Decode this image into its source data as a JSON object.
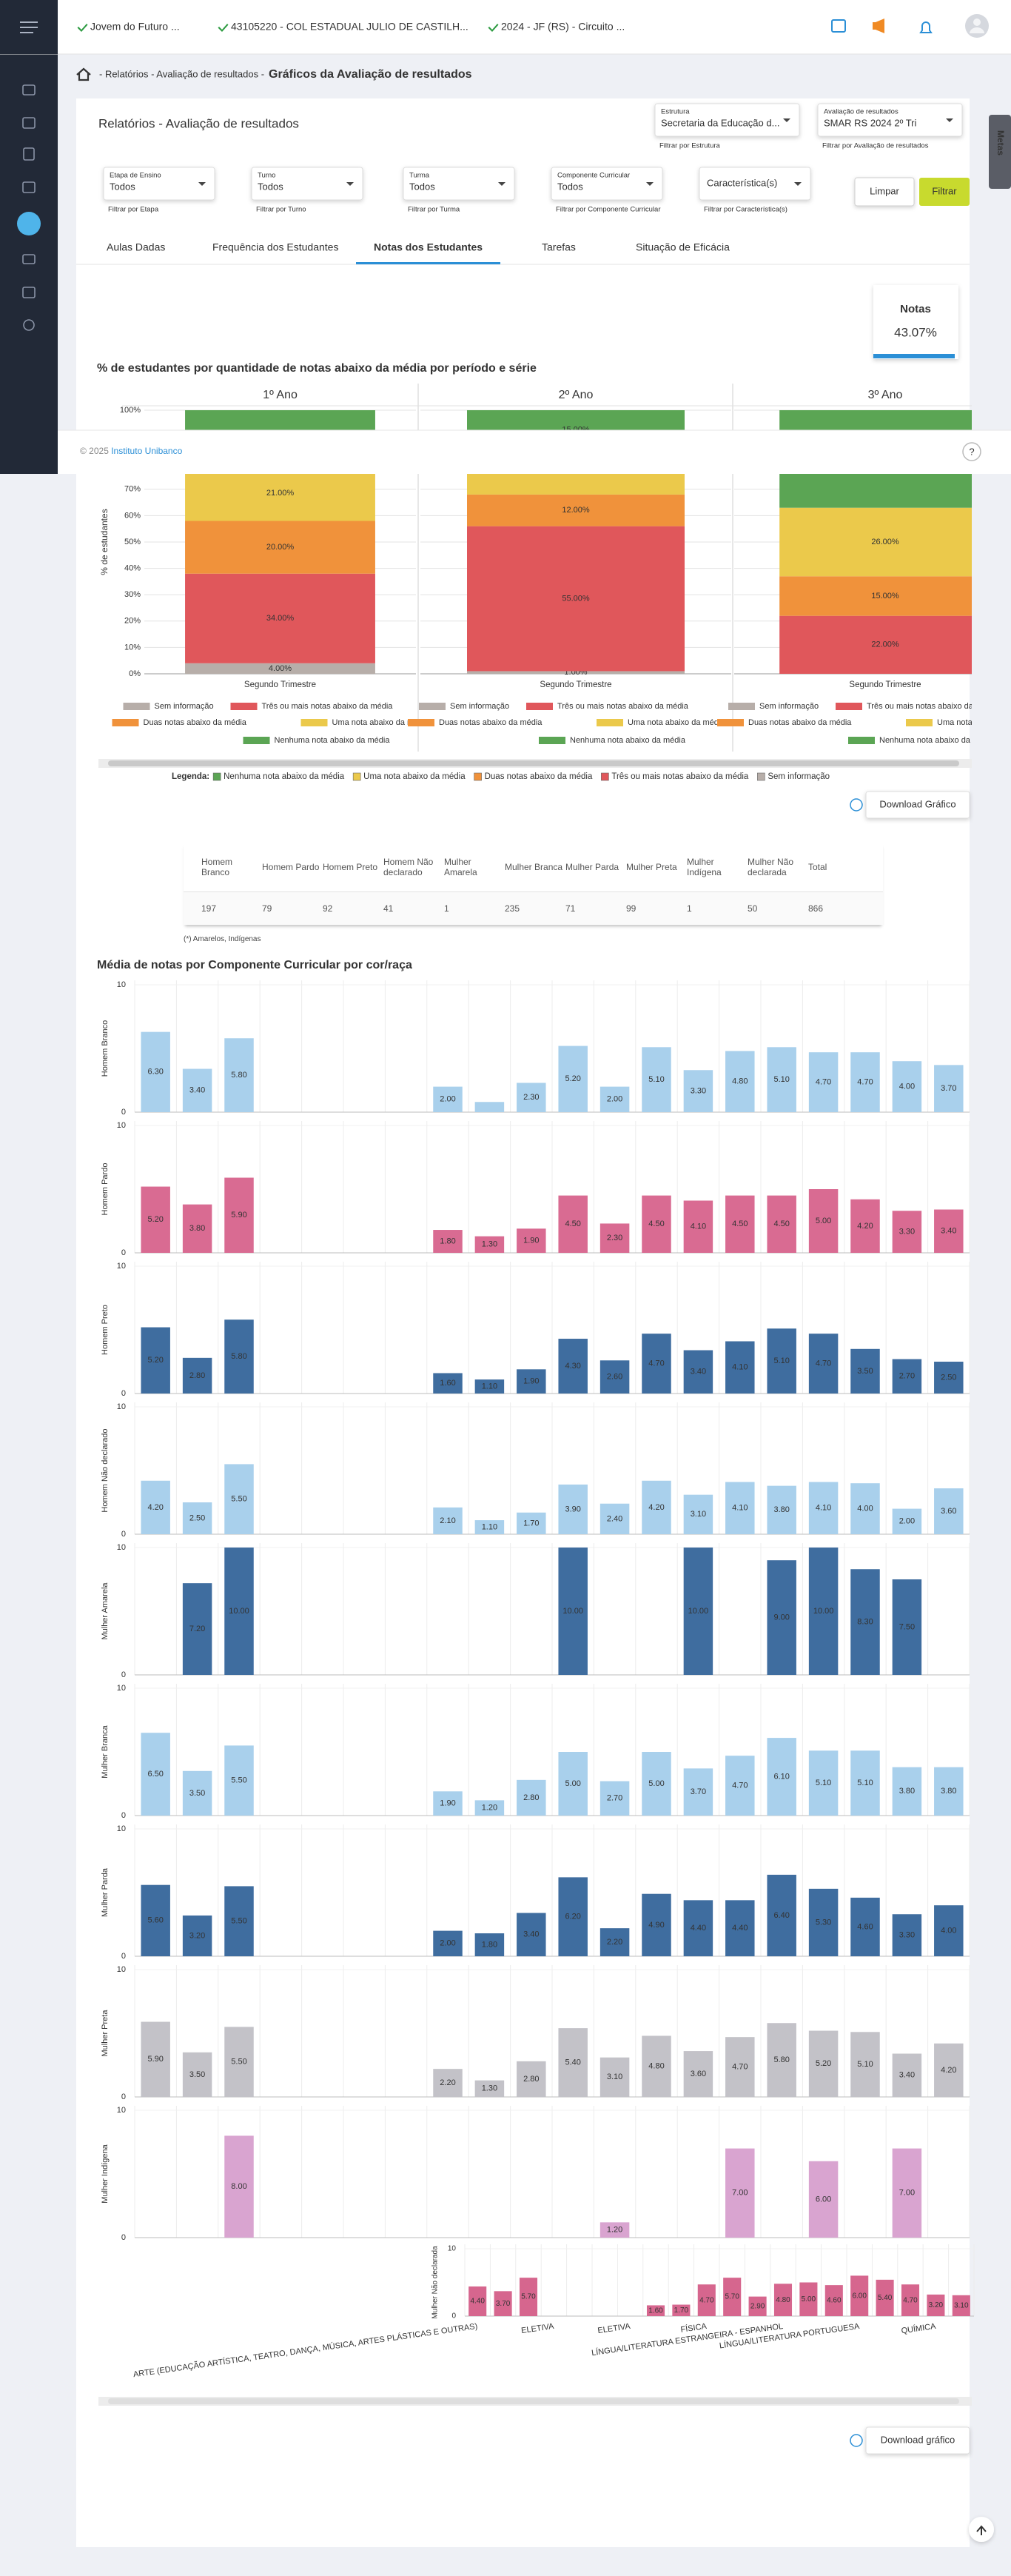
{
  "header": {
    "breadcrumbs": [
      "Jovem do Futuro ...",
      "43105220 - COL ESTADUAL JULIO DE CASTILH...",
      "2024 - JF (RS) - Circuito ..."
    ]
  },
  "page": {
    "path": "- Relatórios - Avaliação de resultados -",
    "title": "Gráficos da Avaliação de resultados"
  },
  "panel_title": "Relatórios - Avaliação de resultados",
  "top_filters": [
    {
      "label": "Estrutura",
      "value": "Secretaria da Educação d...",
      "caption": "Filtrar por Estrutura"
    },
    {
      "label": "Avaliação de resultados",
      "value": "SMAR RS 2024 2º Tri",
      "caption": "Filtrar por Avaliação de resultados"
    }
  ],
  "filters": [
    {
      "label": "Etapa de Ensino",
      "value": "Todos",
      "caption": "Filtrar por Etapa"
    },
    {
      "label": "Turno",
      "value": "Todos",
      "caption": "Filtrar por Turno"
    },
    {
      "label": "Turma",
      "value": "Todos",
      "caption": "Filtrar por Turma"
    },
    {
      "label": "Componente Curricular",
      "value": "Todos",
      "caption": "Filtrar por Componente Curricular"
    },
    {
      "placeholder": "Característica(s)",
      "caption": "Filtrar por Característica(s)"
    }
  ],
  "buttons": {
    "clear": "Limpar",
    "filter": "Filtrar"
  },
  "side_tab": "Metas",
  "tabs": [
    "Aulas Dadas",
    "Frequência dos Estudantes",
    "Notas dos Estudantes",
    "Tarefas",
    "Situação de Eficácia"
  ],
  "active_tab": 2,
  "notes_card": {
    "label": "Notas",
    "value": "43.07%"
  },
  "footer": {
    "copyright": "© 2025",
    "link": "Instituto Unibanco",
    "help": "?"
  },
  "download_buttons": [
    "Download Gráfico",
    "Download gráfico"
  ],
  "table": {
    "header": [
      "Homem Branco",
      "Homem Pardo",
      "Homem Preto",
      "Homem Não declarado",
      "Mulher Amarela",
      "Mulher Branca",
      "Mulher Parda",
      "Mulher Preta",
      "Mulher Indígena",
      "Mulher Não declarada",
      "Total"
    ],
    "rows": [
      [
        197,
        79,
        92,
        41,
        1,
        235,
        71,
        99,
        1,
        50,
        866
      ]
    ],
    "note": "(*) Amarelos, Indígenas"
  },
  "chart_data": [
    {
      "type": "stacked_bar",
      "title": "% de estudantes por quantidade de notas abaixo da média por período e série",
      "ylabel": "% de estudantes",
      "legend_title": "Legenda:",
      "panels": [
        {
          "title": "1º Ano",
          "category": "Segundo Trimestre"
        },
        {
          "title": "2º Ano",
          "category": "Segundo Trimestre"
        },
        {
          "title": "3º Ano",
          "category": "Segundo Trimestre"
        }
      ],
      "series": [
        {
          "name": "Sem informação",
          "color": "#b7aea9",
          "values": [
            4,
            1,
            0
          ],
          "value_labels": [
            "4.00%",
            "1.00%",
            null
          ]
        },
        {
          "name": "Três ou mais notas abaixo da média",
          "color": "#e0575b",
          "values": [
            34,
            55,
            22
          ],
          "value_labels": [
            "34.00%",
            "55.00%",
            "22.00%"
          ]
        },
        {
          "name": "Duas notas abaixo da média",
          "color": "#f0923b",
          "values": [
            20,
            12,
            15
          ],
          "value_labels": [
            "20.00%",
            "12.00%",
            "15.00%"
          ]
        },
        {
          "name": "Uma nota abaixo da média",
          "color": "#ebc94b",
          "values": [
            21,
            17,
            26
          ],
          "value_labels": [
            "21.00%",
            null,
            "26.00%"
          ]
        },
        {
          "name": "Nenhuma nota abaixo da média",
          "color": "#5ba554",
          "values": [
            21,
            15,
            37
          ],
          "value_labels": [
            null,
            "15.00%",
            null
          ]
        }
      ],
      "ylim": [
        0,
        100
      ],
      "yticks": [
        {
          "value": 0,
          "label": "0%"
        },
        {
          "value": 10,
          "label": "10%"
        },
        {
          "value": 20,
          "label": "20%"
        },
        {
          "value": 30,
          "label": "30%"
        },
        {
          "value": 40,
          "label": "40%"
        },
        {
          "value": 50,
          "label": "50%"
        },
        {
          "value": 60,
          "label": "60%"
        },
        {
          "value": 70,
          "label": "70%"
        },
        {
          "value": 80,
          "label": "80%"
        },
        {
          "value": 90,
          "label": "90%"
        },
        {
          "value": 100,
          "label": "100%"
        }
      ],
      "grid": true
    },
    {
      "type": "bar_grid",
      "title": "Média de notas por Componente Curricular por cor/raça",
      "categories": [
        "ARTE (EDUCAÇÃO ARTÍSTICA, TEATRO, DANÇA, MÚSICA, ARTES PLÁSTICAS E OUTRAS)",
        null,
        null,
        "ELETIVA",
        null,
        null,
        "ELETIVA",
        null,
        null,
        "FÍSICA",
        null,
        null,
        "LÍNGUA/LITERATURA ESTRANGEIRA - ESPANHOL",
        null,
        null,
        "LÍNGUA/LITERATURA PORTUGUESA",
        null,
        null,
        "QUÍMICA",
        null
      ],
      "ylim": [
        0,
        10
      ],
      "yticks": [
        0,
        10
      ],
      "series": [
        {
          "name": "Homem Branco",
          "color": "#a9d0ec",
          "values": [
            6.3,
            3.4,
            5.8,
            null,
            null,
            null,
            null,
            2.0,
            0.8,
            2.3,
            5.2,
            2.0,
            5.1,
            3.3,
            4.8,
            5.1,
            4.7,
            4.7,
            4.0,
            3.7
          ],
          "value_labels": [
            "6.30",
            "3.40",
            "5.80",
            null,
            null,
            null,
            null,
            "2.00",
            null,
            "2.30",
            "5.20",
            "2.00",
            "5.10",
            "3.30",
            "4.80",
            "5.10",
            "4.70",
            "4.70",
            "4.00",
            "3.70"
          ]
        },
        {
          "name": "Homem Pardo",
          "color": "#d96b92",
          "values": [
            5.2,
            3.8,
            5.9,
            null,
            null,
            null,
            null,
            1.8,
            1.3,
            1.9,
            4.5,
            2.3,
            4.5,
            4.1,
            4.5,
            4.5,
            5.0,
            4.2,
            3.3,
            3.4
          ],
          "value_labels": [
            "5.20",
            "3.80",
            "5.90",
            null,
            null,
            null,
            null,
            "1.80",
            "1.30",
            "1.90",
            "4.50",
            "2.30",
            "4.50",
            "4.10",
            "4.50",
            "4.50",
            "5.00",
            "4.20",
            "3.30",
            "3.40"
          ]
        },
        {
          "name": "Homem Preto",
          "color": "#3f6d9f",
          "values": [
            5.2,
            2.8,
            5.8,
            null,
            null,
            null,
            null,
            1.6,
            1.1,
            1.9,
            4.3,
            2.6,
            4.7,
            3.4,
            4.1,
            5.1,
            4.7,
            3.5,
            2.7,
            2.5
          ],
          "value_labels": [
            "5.20",
            "2.80",
            "5.80",
            null,
            null,
            null,
            null,
            "1.60",
            "1.10",
            "1.90",
            "4.30",
            "2.60",
            "4.70",
            "3.40",
            "4.10",
            "5.10",
            "4.70",
            "3.50",
            "2.70",
            "2.50"
          ]
        },
        {
          "name": "Homem Não declarado",
          "color": "#a9d0ec",
          "values": [
            4.2,
            2.5,
            5.5,
            null,
            null,
            null,
            null,
            2.1,
            1.1,
            1.7,
            3.9,
            2.4,
            4.2,
            3.1,
            4.1,
            3.8,
            4.1,
            4.0,
            2.0,
            3.6
          ],
          "value_labels": [
            "4.20",
            "2.50",
            "5.50",
            null,
            null,
            null,
            null,
            "2.10",
            "1.10",
            "1.70",
            "3.90",
            "2.40",
            "4.20",
            "3.10",
            "4.10",
            "3.80",
            "4.10",
            "4.00",
            "2.00",
            "3.60"
          ]
        },
        {
          "name": "Mulher Amarela",
          "color": "#3f6d9f",
          "values": [
            null,
            7.2,
            10.0,
            null,
            null,
            null,
            null,
            null,
            null,
            null,
            10.0,
            null,
            null,
            10.0,
            null,
            9.0,
            10.0,
            8.3,
            7.5,
            null
          ],
          "value_labels": [
            null,
            "7.20",
            "10.00",
            null,
            null,
            null,
            null,
            null,
            null,
            null,
            "10.00",
            null,
            null,
            "10.00",
            null,
            "9.00",
            "10.00",
            "8.30",
            "7.50",
            null
          ]
        },
        {
          "name": "Mulher Branca",
          "color": "#a9d0ec",
          "values": [
            6.5,
            3.5,
            5.5,
            null,
            null,
            null,
            null,
            1.9,
            1.2,
            2.8,
            5.0,
            2.7,
            5.0,
            3.7,
            4.7,
            6.1,
            5.1,
            5.1,
            3.8,
            3.8
          ],
          "value_labels": [
            "6.50",
            "3.50",
            "5.50",
            null,
            null,
            null,
            null,
            "1.90",
            "1.20",
            "2.80",
            "5.00",
            "2.70",
            "5.00",
            "3.70",
            "4.70",
            "6.10",
            "5.10",
            "5.10",
            "3.80",
            "3.80"
          ]
        },
        {
          "name": "Mulher Parda",
          "color": "#3f6d9f",
          "values": [
            5.6,
            3.2,
            5.5,
            null,
            null,
            null,
            null,
            2.0,
            1.8,
            3.4,
            6.2,
            2.2,
            4.9,
            4.4,
            4.4,
            6.4,
            5.3,
            4.6,
            3.3,
            4.0
          ],
          "value_labels": [
            "5.60",
            "3.20",
            "5.50",
            null,
            null,
            null,
            null,
            "2.00",
            "1.80",
            "3.40",
            "6.20",
            "2.20",
            "4.90",
            "4.40",
            "4.40",
            "6.40",
            "5.30",
            "4.60",
            "3.30",
            "4.00"
          ]
        },
        {
          "name": "Mulher Preta",
          "color": "#c3c2c8",
          "values": [
            5.9,
            3.5,
            5.5,
            null,
            null,
            null,
            null,
            2.2,
            1.3,
            2.8,
            5.4,
            3.1,
            4.8,
            3.6,
            4.7,
            5.8,
            5.2,
            5.1,
            3.4,
            4.2
          ],
          "value_labels": [
            "5.90",
            "3.50",
            "5.50",
            null,
            null,
            null,
            null,
            "2.20",
            "1.30",
            "2.80",
            "5.40",
            "3.10",
            "4.80",
            "3.60",
            "4.70",
            "5.80",
            "5.20",
            "5.10",
            "3.40",
            "4.20"
          ]
        },
        {
          "name": "Mulher Indígena",
          "color": "#d9a4d0",
          "values": [
            null,
            null,
            8.0,
            null,
            null,
            null,
            null,
            null,
            null,
            null,
            null,
            1.2,
            null,
            null,
            7.0,
            null,
            6.0,
            null,
            7.0,
            null
          ],
          "value_labels": [
            null,
            null,
            "8.00",
            null,
            null,
            null,
            null,
            null,
            null,
            null,
            null,
            "1.20",
            null,
            null,
            "7.00",
            null,
            "6.00",
            null,
            "7.00",
            null
          ]
        },
        {
          "name": "Mulher Não declarada",
          "color": "#d6668e",
          "values": [
            4.4,
            3.7,
            5.7,
            null,
            null,
            null,
            null,
            1.6,
            1.7,
            4.7,
            5.7,
            2.9,
            4.8,
            5.0,
            4.6,
            6.0,
            5.4,
            4.7,
            3.2,
            3.1
          ],
          "value_labels": [
            "4.40",
            "3.70",
            "5.70",
            null,
            null,
            null,
            null,
            "1.60",
            "1.70",
            "4.70",
            "5.70",
            "2.90",
            "4.80",
            "5.00",
            "4.60",
            "6.00",
            "5.40",
            "4.70",
            "3.20",
            "3.10"
          ]
        }
      ]
    }
  ]
}
